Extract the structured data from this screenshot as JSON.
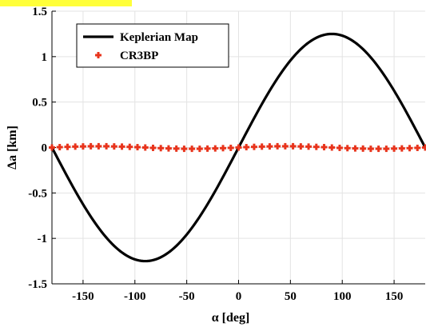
{
  "chart_data": {
    "type": "line",
    "title": "",
    "xlabel": "α  [deg]",
    "ylabel": "Δa [km]",
    "xlim": [
      -180,
      180
    ],
    "ylim": [
      -1.5,
      1.5
    ],
    "xticks": [
      -150,
      -100,
      -50,
      0,
      50,
      100,
      150
    ],
    "xtick_labels": [
      "-150",
      "-100",
      "-50",
      "0",
      "50",
      "100",
      "150"
    ],
    "yticks": [
      -1.5,
      -1,
      -0.5,
      0,
      0.5,
      1,
      1.5
    ],
    "ytick_labels": [
      "-1.5",
      "-1",
      "-0.5",
      "0",
      "0.5",
      "1",
      "1.5"
    ],
    "grid": true,
    "legend_position": "top-left",
    "series": [
      {
        "name": "Keplerian Map",
        "style": "line",
        "color": "#000000",
        "x": [
          -180,
          -165,
          -150,
          -135,
          -120,
          -105,
          -90,
          -75,
          -60,
          -45,
          -30,
          -15,
          0,
          15,
          30,
          45,
          60,
          75,
          90,
          105,
          120,
          135,
          150,
          165,
          180
        ],
        "y": [
          0,
          -0.32,
          -0.62,
          -0.88,
          -1.08,
          -1.21,
          -1.25,
          -1.21,
          -1.08,
          -0.88,
          -0.62,
          -0.32,
          0,
          0.32,
          0.62,
          0.88,
          1.08,
          1.21,
          1.25,
          1.21,
          1.08,
          0.88,
          0.62,
          0.32,
          0
        ]
      },
      {
        "name": "CR3BP",
        "style": "markers",
        "marker": "plus",
        "color": "#e8341c",
        "x": [
          -180,
          -172.5,
          -165,
          -157.5,
          -150,
          -142.5,
          -135,
          -127.5,
          -120,
          -112.5,
          -105,
          -97.5,
          -90,
          -82.5,
          -75,
          -67.5,
          -60,
          -52.5,
          -45,
          -37.5,
          -30,
          -22.5,
          -15,
          -7.5,
          0,
          7.5,
          15,
          22.5,
          30,
          37.5,
          45,
          52.5,
          60,
          67.5,
          75,
          82.5,
          90,
          97.5,
          105,
          112.5,
          120,
          127.5,
          135,
          142.5,
          150,
          157.5,
          165,
          172.5,
          180
        ],
        "y": [
          0,
          0.004,
          0.007,
          0.01,
          0.012,
          0.014,
          0.014,
          0.014,
          0.012,
          0.01,
          0.007,
          0.004,
          0,
          -0.004,
          -0.007,
          -0.01,
          -0.012,
          -0.014,
          -0.014,
          -0.014,
          -0.012,
          -0.01,
          -0.007,
          -0.004,
          0,
          0.004,
          0.007,
          0.01,
          0.012,
          0.014,
          0.014,
          0.014,
          0.012,
          0.01,
          0.007,
          0.004,
          0,
          -0.004,
          -0.007,
          -0.01,
          -0.012,
          -0.014,
          -0.014,
          -0.014,
          -0.012,
          -0.01,
          -0.007,
          -0.004,
          0
        ]
      }
    ]
  }
}
